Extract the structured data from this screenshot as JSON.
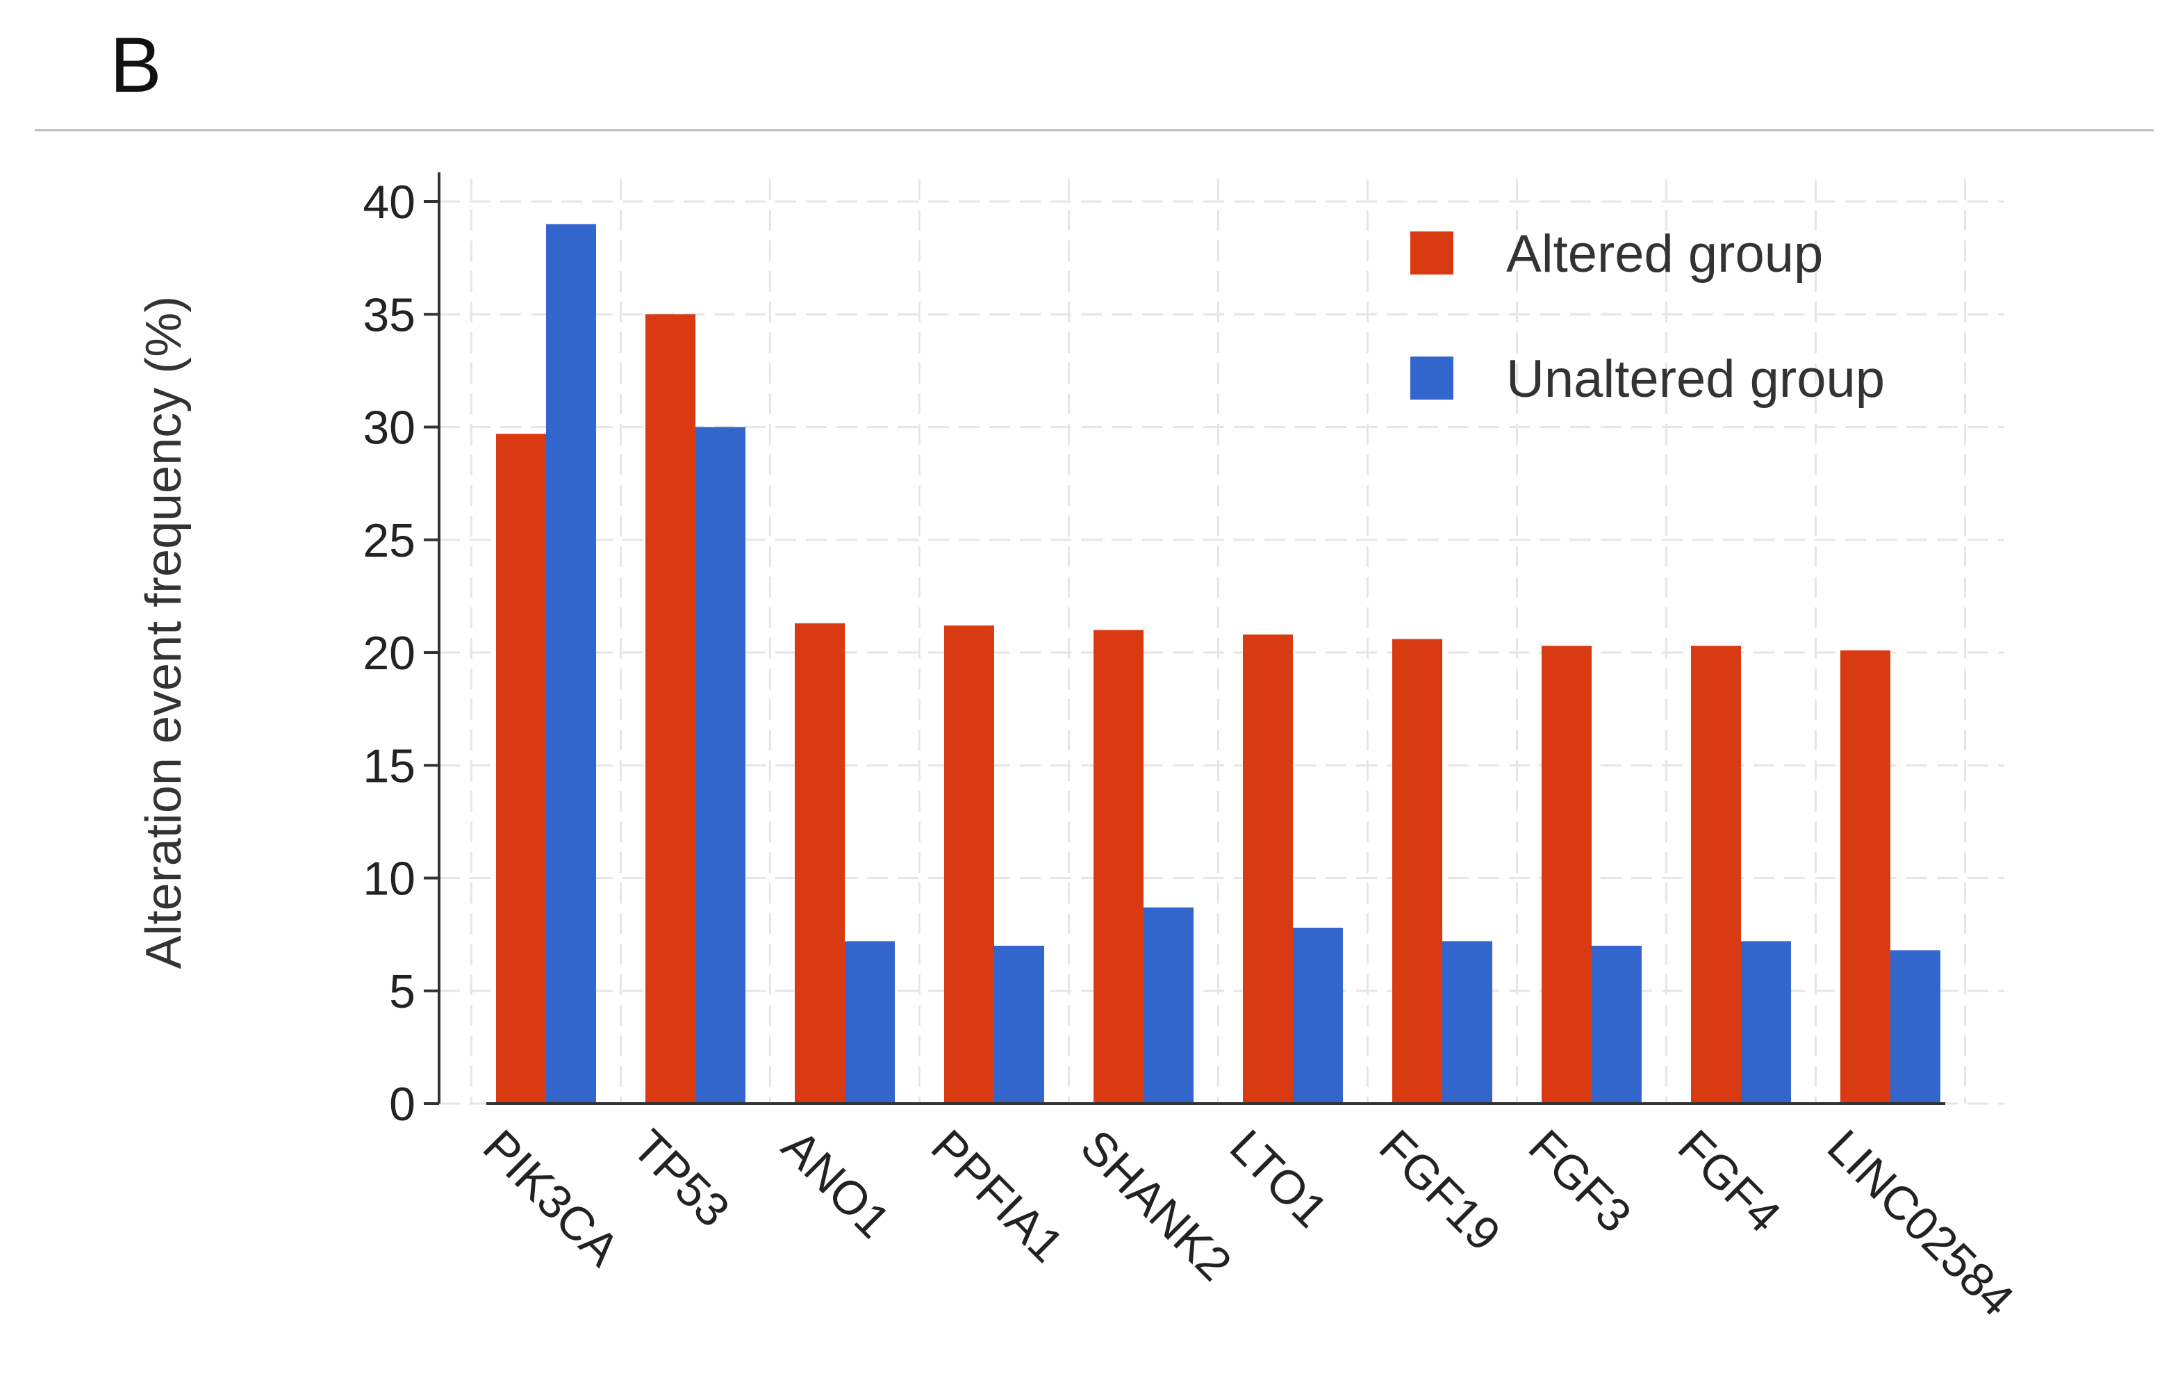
{
  "panel_label": "B",
  "chart_data": {
    "type": "bar",
    "title": "",
    "xlabel": "",
    "ylabel": "Alteration event frequency (%)",
    "ylim": [
      0,
      40
    ],
    "yticks": [
      0,
      5,
      10,
      15,
      20,
      25,
      30,
      35,
      40
    ],
    "grid": true,
    "legend_position": "top-right",
    "categories": [
      "PIK3CA",
      "TP53",
      "ANO1",
      "PPFIA1",
      "SHANK2",
      "LTO1",
      "FGF19",
      "FGF3",
      "FGF4",
      "LINC02584"
    ],
    "series": [
      {
        "name": "Altered group",
        "color": "#d93a12",
        "values": [
          29.7,
          35.0,
          21.3,
          21.2,
          21.0,
          20.8,
          20.6,
          20.3,
          20.3,
          20.1
        ]
      },
      {
        "name": "Unaltered group",
        "color": "#3366cc",
        "values": [
          39.0,
          30.0,
          7.2,
          7.0,
          8.7,
          7.8,
          7.2,
          7.0,
          7.2,
          6.8
        ]
      }
    ]
  }
}
